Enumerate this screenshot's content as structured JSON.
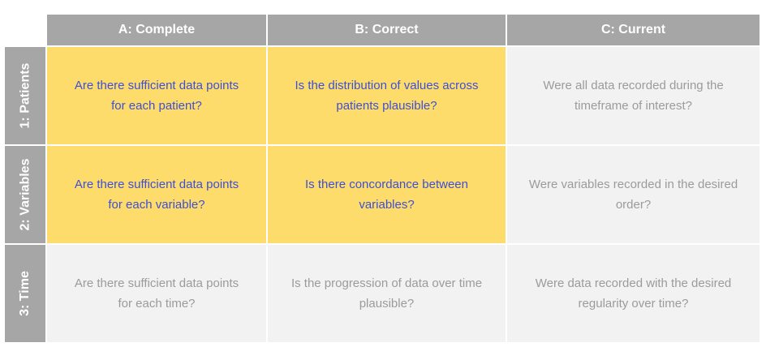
{
  "columns": [
    {
      "label": "A: Complete"
    },
    {
      "label": "B: Correct"
    },
    {
      "label": "C: Current"
    }
  ],
  "rows": [
    {
      "label": "1: Patients",
      "cells": [
        {
          "text": "Are there sufficient data points for each patient?",
          "highlighted": true
        },
        {
          "text": "Is the distribution of values across patients plausible?",
          "highlighted": true
        },
        {
          "text": "Were all data recorded during the timeframe of interest?",
          "highlighted": false
        }
      ]
    },
    {
      "label": "2: Variables",
      "cells": [
        {
          "text": "Are there sufficient data points for each variable?",
          "highlighted": true
        },
        {
          "text": "Is there concordance between variables?",
          "highlighted": true
        },
        {
          "text": "Were variables recorded in the desired order?",
          "highlighted": false
        }
      ]
    },
    {
      "label": "3: Time",
      "cells": [
        {
          "text": "Are there sufficient data points for each time?",
          "highlighted": false
        },
        {
          "text": "Is the progression of data over time plausible?",
          "highlighted": false
        },
        {
          "text": "Were data recorded with the desired regularity over time?",
          "highlighted": false
        }
      ]
    }
  ],
  "colors": {
    "header_bg": "#a6a6a6",
    "highlight_bg": "#fedc6b",
    "highlight_text": "#3d4fd4",
    "plain_bg": "#f2f2f2",
    "plain_text": "#9b9b9b"
  }
}
